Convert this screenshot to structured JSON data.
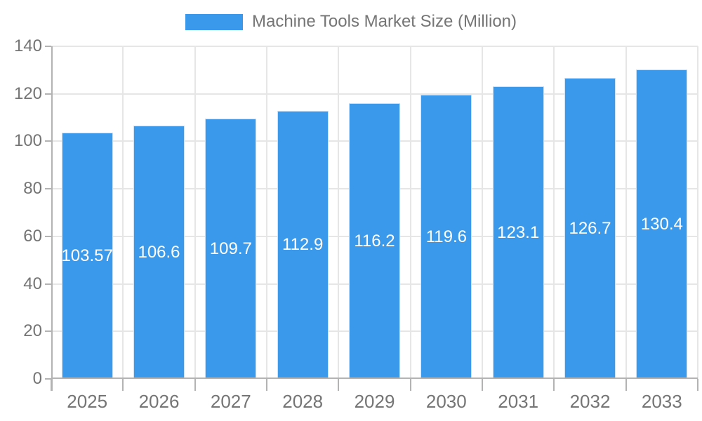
{
  "chart_data": {
    "type": "bar",
    "title": "Machine Tools Market Size (Million)",
    "categories": [
      "2025",
      "2026",
      "2027",
      "2028",
      "2029",
      "2030",
      "2031",
      "2032",
      "2033"
    ],
    "values": [
      103.57,
      106.6,
      109.7,
      112.9,
      116.2,
      119.6,
      123.1,
      126.7,
      130.4
    ],
    "value_labels": [
      "103.57",
      "106.6",
      "109.7",
      "112.9",
      "116.2",
      "119.6",
      "123.1",
      "126.7",
      "130.4"
    ],
    "series_name": "Machine Tools Market Size (Million)",
    "xlabel": "",
    "ylabel": "",
    "ylim": [
      0,
      140
    ],
    "yticks": [
      0,
      20,
      40,
      60,
      80,
      100,
      120,
      140
    ],
    "grid": true,
    "legend_position": "top",
    "bar_color": "#3b99ec",
    "bar_border_color": "#c9e2f8",
    "value_label_color": "#ffffff",
    "text_color": "#757575",
    "grid_color": "#e6e6e6",
    "axis_color": "#b3b3b3",
    "background_color": "#ffffff"
  }
}
